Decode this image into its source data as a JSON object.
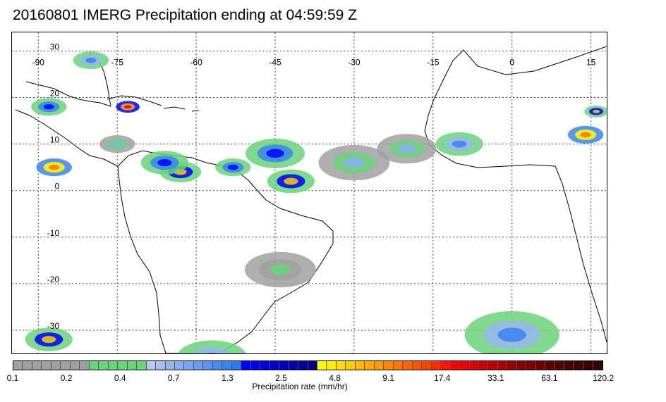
{
  "title": "20160801 IMERG Precipitation ending at 04:59:59 Z",
  "map": {
    "lon_range": [
      -95,
      18
    ],
    "lat_range": [
      -35,
      34
    ],
    "lon_ticks": [
      -90,
      -75,
      -60,
      -45,
      -30,
      -15,
      0,
      15
    ],
    "lat_ticks": [
      30,
      20,
      10,
      0,
      -10,
      -20,
      -30
    ],
    "lon_tick_labels": [
      "-90",
      "-75",
      "-60",
      "-45",
      "-30",
      "-15",
      "0",
      "15"
    ],
    "lat_tick_labels": [
      "30",
      "20",
      "10",
      "0",
      "-10",
      "-20",
      "-30"
    ],
    "grid": true
  },
  "colorbar": {
    "label": "Precipitation rate (mm/hr)",
    "tick_labels": [
      "0.1",
      "0.2",
      "0.4",
      "0.7",
      "1.3",
      "2.5",
      "4.8",
      "9.1",
      "17.4",
      "33.1",
      "63.1",
      "120.2"
    ],
    "colors": [
      "#a0a0a0",
      "#a0a0a0",
      "#a0a0a0",
      "#a0a0a0",
      "#a0a0a0",
      "#a0a0a0",
      "#a0a0a0",
      "#a0a0a0",
      "#6ad47a",
      "#6ad47a",
      "#6ad47a",
      "#6ad47a",
      "#6ad47a",
      "#6ad47a",
      "#b8c8f0",
      "#a8bff0",
      "#98b6f0",
      "#88aef0",
      "#78a6f0",
      "#689df0",
      "#5895f0",
      "#488cf0",
      "#3884f0",
      "#287bf0",
      "#0000ff",
      "#0000ee",
      "#0000dd",
      "#0000cc",
      "#0000bb",
      "#0000aa",
      "#000099",
      "#000088",
      "#ffff00",
      "#ffee00",
      "#ffdd00",
      "#ffcc00",
      "#ffbb00",
      "#ffaa00",
      "#ff9900",
      "#ff8800",
      "#ff7700",
      "#ff6600",
      "#ff5500",
      "#ff4400",
      "#ff2a00",
      "#ff1500",
      "#ff0000",
      "#ee0000",
      "#dd0000",
      "#cc0000",
      "#bb0000",
      "#aa0000",
      "#990000",
      "#880000",
      "#7a0000",
      "#6e0000",
      "#600000",
      "#550000",
      "#4a0000",
      "#400000",
      "#3a0000",
      "#340000"
    ]
  },
  "precip_cells": [
    {
      "lon": -63,
      "lat": 4,
      "r": 3.5,
      "rate": 9.1
    },
    {
      "lon": -66,
      "lat": 6,
      "r": 4,
      "rate": 4.8
    },
    {
      "lon": -53,
      "lat": 5,
      "r": 3,
      "rate": 4.8
    },
    {
      "lon": -42,
      "lat": 2,
      "r": 4,
      "rate": 9.1
    },
    {
      "lon": -45,
      "lat": 8,
      "r": 5,
      "rate": 4.8
    },
    {
      "lon": -10,
      "lat": 10,
      "r": 4,
      "rate": 2.5
    },
    {
      "lon": -73,
      "lat": 18,
      "r": 2,
      "rate": 33.1
    },
    {
      "lon": -87,
      "lat": 5,
      "r": 3,
      "rate": 17.4
    },
    {
      "lon": 14,
      "lat": 12,
      "r": 3,
      "rate": 17.4
    },
    {
      "lon": 16,
      "lat": 17,
      "r": 2,
      "rate": 9.1
    },
    {
      "lon": -88,
      "lat": 18,
      "r": 3,
      "rate": 4.8
    },
    {
      "lon": -80,
      "lat": 28,
      "r": 3,
      "rate": 2.5
    },
    {
      "lon": -88,
      "lat": -32,
      "r": 4,
      "rate": 9.1
    },
    {
      "lon": -57,
      "lat": -36,
      "r": 6,
      "rate": 2.5
    },
    {
      "lon": 0,
      "lat": -31,
      "r": 8,
      "rate": 2.5
    },
    {
      "lon": -30,
      "lat": 6,
      "r": 6,
      "rate": 1.3
    },
    {
      "lon": -20,
      "lat": 9,
      "r": 5,
      "rate": 1.3
    },
    {
      "lon": -44,
      "lat": -17,
      "r": 6,
      "rate": 0.4
    },
    {
      "lon": -75,
      "lat": 10,
      "r": 3,
      "rate": 1.3
    }
  ]
}
